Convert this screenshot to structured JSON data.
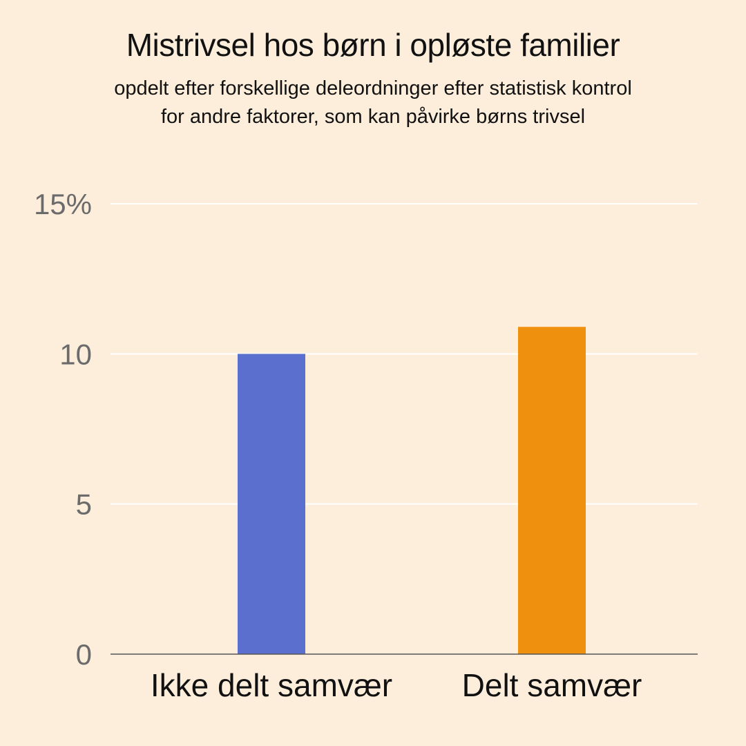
{
  "chart_data": {
    "type": "bar",
    "title": "Mistrivsel hos børn i opløste familier",
    "subtitle_lines": [
      "opdelt efter forskellige deleordninger efter statistisk kontrol",
      "for andre faktorer, som kan påvirke børns trivsel"
    ],
    "categories": [
      "Ikke delt samvær",
      "Delt samvær"
    ],
    "values": [
      10,
      10.9
    ],
    "colors": [
      "#5B70CE",
      "#F0900F"
    ],
    "ylim": [
      0,
      15
    ],
    "yticks": [
      0,
      5,
      10,
      15
    ],
    "ytick_labels": [
      "0",
      "5",
      "10",
      "15%"
    ],
    "grid": true,
    "xlabel": "",
    "ylabel": ""
  }
}
